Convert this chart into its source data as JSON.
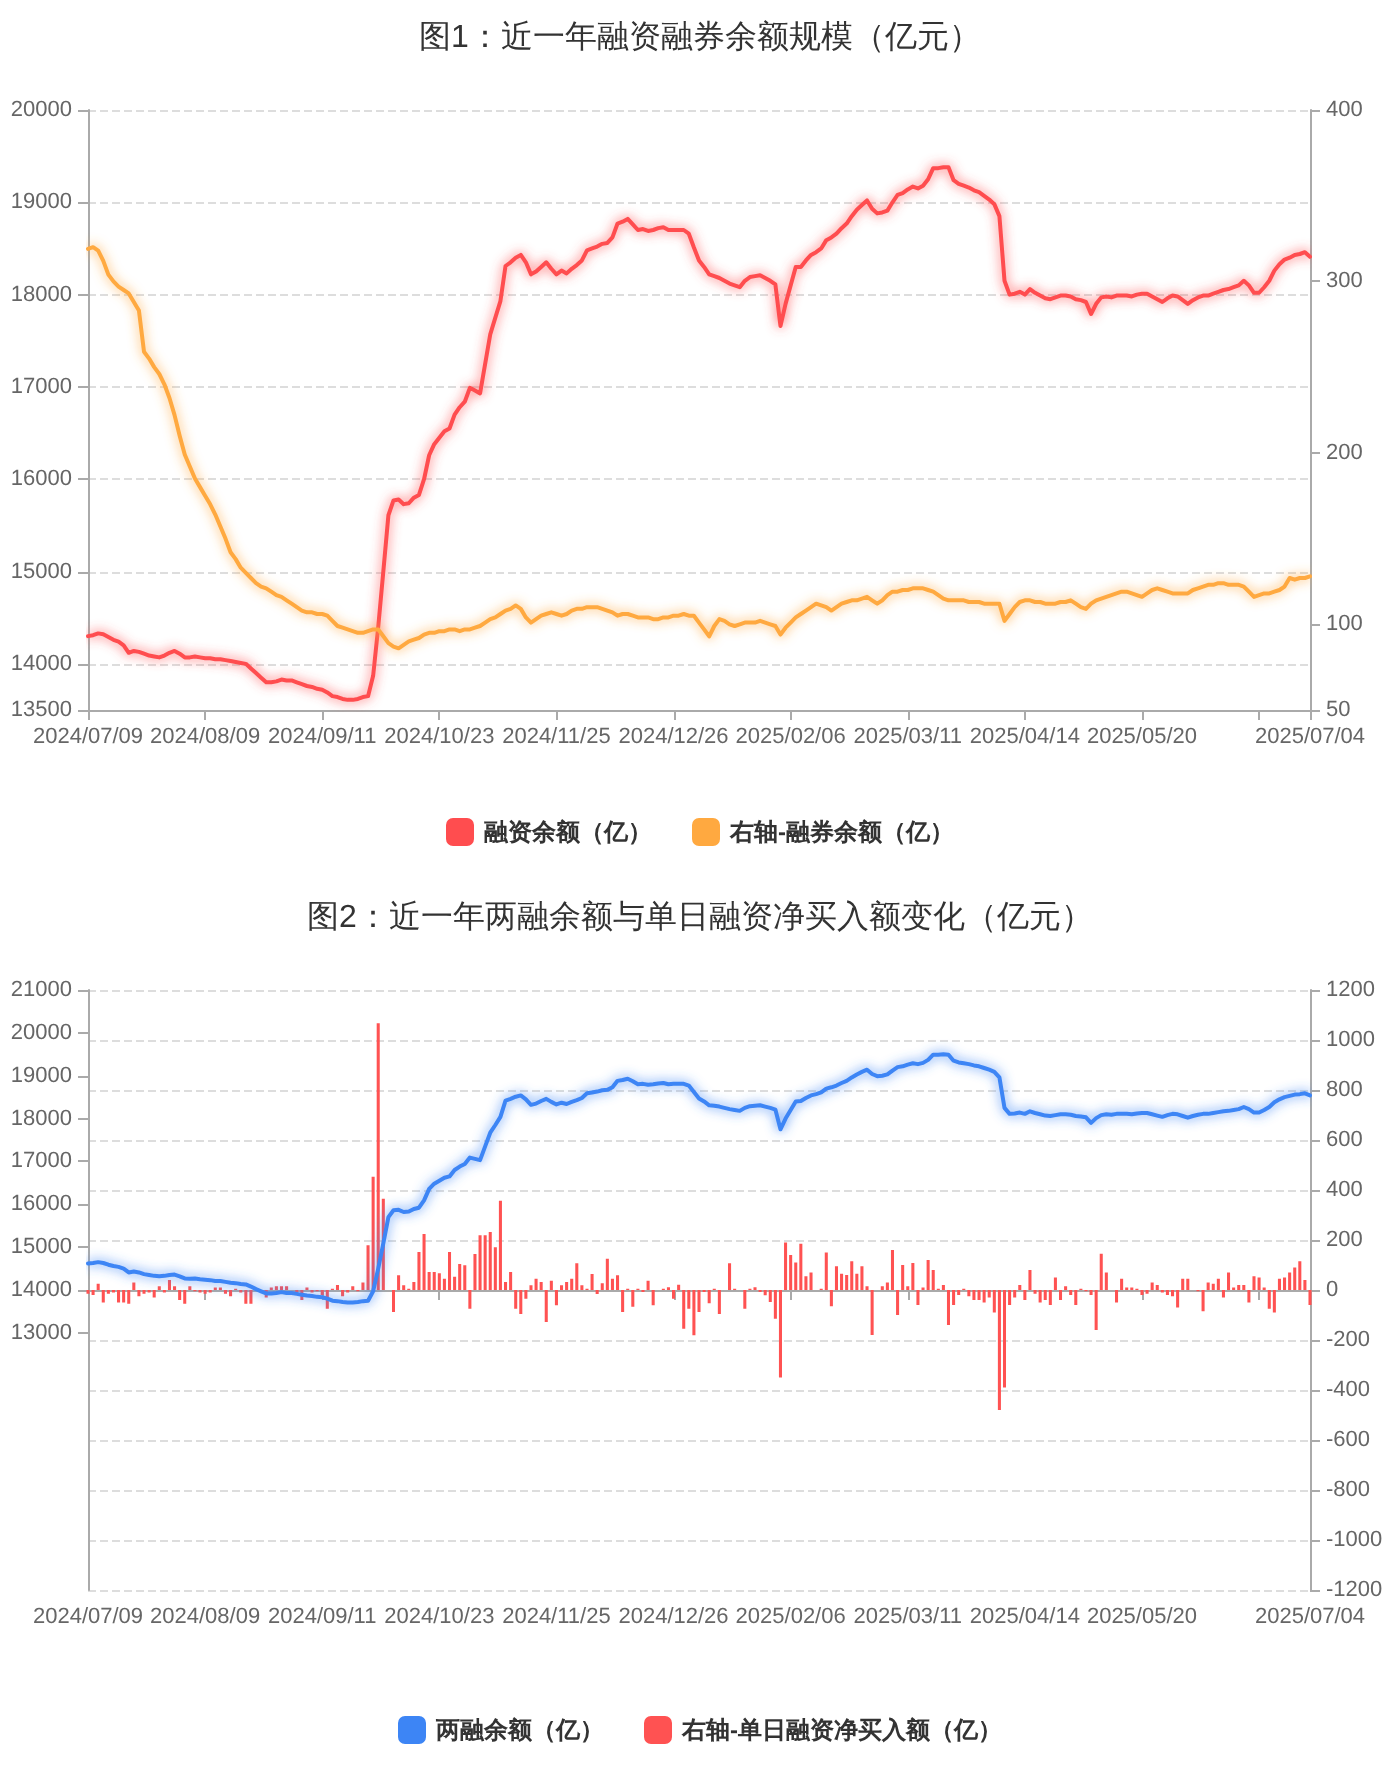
{
  "chart_data": [
    {
      "type": "line",
      "title": "图1：近一年融资融券余额规模（亿元）",
      "categories": [
        "2024/07/09",
        null,
        null,
        null,
        null,
        null,
        null,
        null,
        null,
        null,
        null,
        null,
        null,
        null,
        null,
        null,
        null,
        null,
        null,
        null,
        null,
        null,
        null,
        "2024/08/09",
        null,
        null,
        null,
        null,
        null,
        null,
        null,
        null,
        null,
        null,
        null,
        null,
        null,
        null,
        null,
        null,
        null,
        null,
        null,
        null,
        null,
        null,
        "2024/09/11",
        null,
        null,
        null,
        null,
        null,
        null,
        null,
        null,
        null,
        null,
        null,
        null,
        null,
        null,
        null,
        null,
        null,
        null,
        null,
        null,
        null,
        null,
        "2024/10/23",
        null,
        null,
        null,
        null,
        null,
        null,
        null,
        null,
        null,
        null,
        null,
        null,
        null,
        null,
        null,
        null,
        null,
        null,
        null,
        null,
        null,
        null,
        "2024/11/25",
        null,
        null,
        null,
        null,
        null,
        null,
        null,
        null,
        null,
        null,
        null,
        null,
        null,
        null,
        null,
        null,
        null,
        null,
        null,
        null,
        null,
        null,
        "2024/12/26",
        null,
        null,
        null,
        null,
        null,
        null,
        null,
        null,
        null,
        null,
        null,
        null,
        null,
        null,
        null,
        null,
        null,
        null,
        null,
        null,
        null,
        null,
        "2025/02/06",
        null,
        null,
        null,
        null,
        null,
        null,
        null,
        null,
        null,
        null,
        null,
        null,
        null,
        null,
        null,
        null,
        null,
        null,
        null,
        null,
        null,
        null,
        "2025/03/11",
        null,
        null,
        null,
        null,
        null,
        null,
        null,
        null,
        null,
        null,
        null,
        null,
        null,
        null,
        null,
        null,
        null,
        null,
        null,
        null,
        null,
        null,
        "2025/04/14",
        null,
        null,
        null,
        null,
        null,
        null,
        null,
        null,
        null,
        null,
        null,
        null,
        null,
        null,
        null,
        null,
        null,
        null,
        null,
        null,
        null,
        null,
        "2025/05/20",
        null,
        null,
        null,
        null,
        null,
        null,
        null,
        null,
        null,
        null,
        null,
        null,
        null,
        null,
        null,
        null,
        null,
        null,
        null,
        null,
        null,
        null,
        null,
        null,
        null,
        null,
        null,
        null,
        null,
        null,
        null,
        null,
        "2025/07/04"
      ],
      "series": [
        {
          "name": "融资余额（亿）",
          "color": "#ff4d4f",
          "values": [
            14300,
            14310,
            14330,
            14320,
            14290,
            14260,
            14240,
            14200,
            14120,
            14140,
            14130,
            14110,
            14090,
            14080,
            14070,
            14090,
            14120,
            14140,
            14110,
            14070,
            14070,
            14080,
            14070,
            14060,
            14060,
            14050,
            14050,
            14040,
            14030,
            14020,
            14010,
            14000,
            13950,
            13900,
            13850,
            13800,
            13800,
            13810,
            13830,
            13820,
            13820,
            13800,
            13780,
            13760,
            13750,
            13730,
            13720,
            13690,
            13650,
            13640,
            13620,
            13610,
            13610,
            13620,
            13640,
            13650,
            13870,
            14400,
            15000,
            15610,
            15770,
            15780,
            15730,
            15740,
            15800,
            15830,
            16000,
            16260,
            16380,
            16450,
            16520,
            16550,
            16700,
            16780,
            16840,
            16990,
            16960,
            16930,
            17250,
            17570,
            17750,
            17930,
            18310,
            18350,
            18400,
            18430,
            18350,
            18220,
            18250,
            18300,
            18350,
            18280,
            18220,
            18260,
            18230,
            18280,
            18320,
            18370,
            18480,
            18500,
            18520,
            18550,
            18560,
            18620,
            18770,
            18790,
            18820,
            18760,
            18700,
            18710,
            18690,
            18700,
            18720,
            18730,
            18700,
            18700,
            18700,
            18700,
            18660,
            18510,
            18370,
            18300,
            18220,
            18200,
            18180,
            18150,
            18120,
            18100,
            18080,
            18150,
            18190,
            18200,
            18210,
            18180,
            18150,
            18110,
            17660,
            17900,
            18100,
            18300,
            18300,
            18370,
            18430,
            18460,
            18500,
            18590,
            18620,
            18660,
            18720,
            18770,
            18850,
            18920,
            18970,
            19020,
            18930,
            18880,
            18890,
            18910,
            19000,
            19080,
            19100,
            19140,
            19170,
            19150,
            19180,
            19250,
            19370,
            19370,
            19380,
            19380,
            19240,
            19200,
            19180,
            19160,
            19130,
            19110,
            19070,
            19030,
            18980,
            18850,
            18150,
            18000,
            18010,
            18030,
            18000,
            18060,
            18020,
            17990,
            17960,
            17950,
            17970,
            17990,
            17990,
            17980,
            17950,
            17940,
            17920,
            17790,
            17900,
            17970,
            17980,
            17970,
            17990,
            17990,
            17990,
            17980,
            18000,
            18010,
            18010,
            17980,
            17950,
            17920,
            17960,
            17990,
            17980,
            17940,
            17900,
            17940,
            17970,
            17990,
            17990,
            18010,
            18030,
            18050,
            18060,
            18080,
            18100,
            18150,
            18100,
            18020,
            18020,
            18080,
            18150,
            18260,
            18330,
            18380,
            18400,
            18430,
            18440,
            18460,
            18410
          ]
        },
        {
          "name": "右轴-融券余额（亿）",
          "color": "#ffa940",
          "axis": "y2",
          "values": [
            319,
            320,
            318,
            312,
            304,
            300,
            297,
            295,
            293,
            288,
            283,
            259,
            255,
            250,
            246,
            240,
            232,
            222,
            210,
            199,
            192,
            185,
            180,
            175,
            170,
            164,
            157,
            150,
            142,
            138,
            133,
            130,
            127,
            124,
            122,
            121,
            119,
            117,
            116,
            114,
            112,
            110,
            108,
            107,
            107,
            106,
            106,
            105,
            102,
            99,
            98,
            97,
            96,
            95,
            95,
            96,
            97,
            97,
            93,
            89,
            87,
            86,
            88,
            90,
            91,
            92,
            94,
            95,
            95,
            96,
            96,
            97,
            97,
            96,
            97,
            97,
            98,
            99,
            101,
            103,
            104,
            106,
            108,
            109,
            111,
            109,
            104,
            101,
            103,
            105,
            106,
            107,
            106,
            105,
            106,
            108,
            109,
            109,
            110,
            110,
            110,
            109,
            108,
            107,
            105,
            106,
            106,
            105,
            104,
            104,
            104,
            103,
            103,
            104,
            104,
            105,
            105,
            106,
            105,
            105,
            101,
            97,
            93,
            99,
            103,
            102,
            100,
            99,
            100,
            101,
            101,
            101,
            102,
            101,
            100,
            99,
            94,
            98,
            101,
            104,
            106,
            108,
            110,
            112,
            111,
            110,
            108,
            110,
            112,
            113,
            114,
            114,
            115,
            116,
            114,
            112,
            114,
            117,
            119,
            119,
            120,
            120,
            121,
            121,
            121,
            120,
            119,
            117,
            115,
            114,
            114,
            114,
            114,
            113,
            113,
            113,
            112,
            112,
            112,
            112,
            102,
            106,
            110,
            113,
            114,
            114,
            113,
            113,
            112,
            112,
            112,
            113,
            113,
            114,
            112,
            110,
            109,
            112,
            114,
            115,
            116,
            117,
            118,
            119,
            119,
            118,
            117,
            116,
            118,
            120,
            121,
            120,
            119,
            118,
            118,
            118,
            118,
            120,
            121,
            122,
            123,
            123,
            124,
            124,
            123,
            123,
            123,
            122,
            119,
            116,
            117,
            118,
            118,
            119,
            120,
            122,
            127,
            126,
            127,
            127,
            128
          ]
        }
      ],
      "ylim": [
        13500,
        20000
      ],
      "yticks": [
        13500,
        14000,
        15000,
        16000,
        17000,
        18000,
        19000,
        20000
      ],
      "y2lim": [
        50,
        400
      ],
      "y2ticks": [
        50,
        100,
        200,
        300,
        400
      ],
      "grid": "y",
      "legend": "bottom",
      "marker": "none"
    },
    {
      "type": "line",
      "title": "图2：近一年两融余额与单日融资净买入额变化（亿元）",
      "categories": [
        "2024/07/09",
        null,
        null,
        null,
        null,
        null,
        null,
        null,
        null,
        null,
        null,
        null,
        null,
        null,
        null,
        null,
        null,
        null,
        null,
        null,
        null,
        null,
        null,
        "2024/08/09",
        null,
        null,
        null,
        null,
        null,
        null,
        null,
        null,
        null,
        null,
        null,
        null,
        null,
        null,
        null,
        null,
        null,
        null,
        null,
        null,
        null,
        null,
        "2024/09/11",
        null,
        null,
        null,
        null,
        null,
        null,
        null,
        null,
        null,
        null,
        null,
        null,
        null,
        null,
        null,
        null,
        null,
        null,
        null,
        null,
        null,
        null,
        "2024/10/23",
        null,
        null,
        null,
        null,
        null,
        null,
        null,
        null,
        null,
        null,
        null,
        null,
        null,
        null,
        null,
        null,
        null,
        null,
        null,
        null,
        null,
        null,
        "2024/11/25",
        null,
        null,
        null,
        null,
        null,
        null,
        null,
        null,
        null,
        null,
        null,
        null,
        null,
        null,
        null,
        null,
        null,
        null,
        null,
        null,
        null,
        null,
        "2024/12/26",
        null,
        null,
        null,
        null,
        null,
        null,
        null,
        null,
        null,
        null,
        null,
        null,
        null,
        null,
        null,
        null,
        null,
        null,
        null,
        null,
        null,
        null,
        "2025/02/06",
        null,
        null,
        null,
        null,
        null,
        null,
        null,
        null,
        null,
        null,
        null,
        null,
        null,
        null,
        null,
        null,
        null,
        null,
        null,
        null,
        null,
        null,
        "2025/03/11",
        null,
        null,
        null,
        null,
        null,
        null,
        null,
        null,
        null,
        null,
        null,
        null,
        null,
        null,
        null,
        null,
        null,
        null,
        null,
        null,
        null,
        null,
        "2025/04/14",
        null,
        null,
        null,
        null,
        null,
        null,
        null,
        null,
        null,
        null,
        null,
        null,
        null,
        null,
        null,
        null,
        null,
        null,
        null,
        null,
        null,
        null,
        "2025/05/20",
        null,
        null,
        null,
        null,
        null,
        null,
        null,
        null,
        null,
        null,
        null,
        null,
        null,
        null,
        null,
        null,
        null,
        null,
        null,
        null,
        null,
        null,
        null,
        null,
        null,
        null,
        null,
        null,
        null,
        null,
        null,
        null,
        "2025/07/04"
      ],
      "series": [
        {
          "name": "两融余额（亿）",
          "color": "#3d85f5",
          "values": [
            14620,
            14630,
            14650,
            14630,
            14590,
            14560,
            14540,
            14500,
            14410,
            14430,
            14410,
            14370,
            14350,
            14330,
            14320,
            14330,
            14350,
            14360,
            14320,
            14270,
            14260,
            14270,
            14250,
            14240,
            14230,
            14210,
            14210,
            14190,
            14170,
            14160,
            14140,
            14130,
            14080,
            14020,
            13970,
            13920,
            13920,
            13930,
            13950,
            13930,
            13930,
            13910,
            13890,
            13870,
            13860,
            13840,
            13830,
            13800,
            13750,
            13740,
            13720,
            13710,
            13710,
            13720,
            13740,
            13750,
            13970,
            14500,
            15090,
            15700,
            15860,
            15870,
            15820,
            15830,
            15890,
            15920,
            16090,
            16360,
            16480,
            16550,
            16620,
            16650,
            16800,
            16880,
            16940,
            17090,
            17060,
            17030,
            17350,
            17670,
            17850,
            18040,
            18420,
            18460,
            18510,
            18540,
            18450,
            18320,
            18350,
            18410,
            18460,
            18390,
            18330,
            18370,
            18340,
            18390,
            18430,
            18480,
            18590,
            18610,
            18630,
            18660,
            18670,
            18730,
            18880,
            18900,
            18930,
            18870,
            18800,
            18810,
            18790,
            18800,
            18820,
            18830,
            18800,
            18810,
            18810,
            18810,
            18770,
            18620,
            18470,
            18400,
            18310,
            18300,
            18280,
            18250,
            18220,
            18200,
            18180,
            18250,
            18290,
            18300,
            18310,
            18280,
            18250,
            18210,
            17750,
            18000,
            18200,
            18400,
            18410,
            18480,
            18540,
            18570,
            18610,
            18700,
            18730,
            18770,
            18830,
            18880,
            18960,
            19030,
            19090,
            19140,
            19040,
            18990,
            19000,
            19030,
            19120,
            19200,
            19220,
            19260,
            19290,
            19270,
            19300,
            19370,
            19490,
            19490,
            19500,
            19490,
            19350,
            19310,
            19290,
            19270,
            19240,
            19220,
            19180,
            19140,
            19090,
            18960,
            18250,
            18110,
            18120,
            18140,
            18110,
            18170,
            18130,
            18100,
            18070,
            18060,
            18080,
            18100,
            18100,
            18090,
            18060,
            18050,
            18030,
            17900,
            18010,
            18080,
            18100,
            18090,
            18110,
            18110,
            18110,
            18100,
            18120,
            18130,
            18130,
            18100,
            18070,
            18040,
            18080,
            18110,
            18100,
            18060,
            18020,
            18060,
            18090,
            18110,
            18110,
            18130,
            18150,
            18170,
            18180,
            18200,
            18220,
            18270,
            18220,
            18140,
            18140,
            18200,
            18270,
            18380,
            18450,
            18500,
            18530,
            18560,
            18570,
            18590,
            18540
          ]
        },
        {
          "name": "右轴-单日融资净买入额（亿）",
          "color": "#ff5252",
          "type": "bar",
          "axis": "y2",
          "values": [
            -15,
            -20,
            25,
            -50,
            -15,
            -10,
            -50,
            -50,
            -55,
            30,
            -25,
            -15,
            -10,
            -30,
            15,
            -10,
            40,
            15,
            -40,
            -55,
            15,
            -5,
            -10,
            -15,
            -10,
            10,
            10,
            -15,
            -25,
            5,
            -10,
            -55,
            -55,
            5,
            null,
            -30,
            10,
            15,
            15,
            15,
            null,
            -10,
            -40,
            10,
            -10,
            -5,
            -20,
            -75,
            5,
            20,
            -25,
            -10,
            15,
            -5,
            30,
            179,
            453,
            1067,
            365,
            null,
            -88,
            59,
            19,
            5,
            32,
            152,
            224,
            72,
            72,
            67,
            45,
            152,
            53,
            104,
            99,
            -75,
            144,
            219,
            219,
            232,
            171,
            357,
            32,
            72,
            -75,
            -96,
            -35,
            19,
            45,
            32,
            -128,
            37,
            -61,
            19,
            32,
            45,
            107,
            19,
            5,
            64,
            -16,
            27,
            125,
            45,
            59,
            -88,
            5,
            -67,
            5,
            -8,
            37,
            -61,
            0,
            5,
            11,
            -35,
            21,
            -155,
            -75,
            -181,
            -88,
            -8,
            -53,
            5,
            -96,
            0,
            107,
            5,
            null,
            -75,
            5,
            11,
            -8,
            -21,
            -48,
            -115,
            -350,
            190,
            140,
            110,
            185,
            55,
            70,
            0,
            5,
            150,
            -65,
            95,
            65,
            60,
            115,
            65,
            95,
            15,
            -180,
            0,
            15,
            30,
            160,
            -100,
            100,
            15,
            108,
            -60,
            10,
            120,
            80,
            5,
            20,
            -140,
            -60,
            -20,
            5,
            -25,
            -40,
            -40,
            -50,
            -30,
            -90,
            -480,
            -390,
            -60,
            -30,
            20,
            -40,
            80,
            -15,
            -50,
            -40,
            -60,
            50,
            -40,
            15,
            -20,
            -60,
            5,
            -5,
            -20,
            -160,
            145,
            70,
            0,
            -50,
            45,
            10,
            10,
            5,
            -20,
            -15,
            30,
            20,
            -10,
            -20,
            -25,
            -70,
            45,
            45,
            0,
            -5,
            -85,
            30,
            25,
            45,
            -30,
            70,
            10,
            20,
            20,
            -50,
            55,
            50,
            10,
            -75,
            -90,
            45,
            50,
            70,
            90,
            115,
            40,
            -60
          ]
        }
      ],
      "ylim": [
        7000,
        21000
      ],
      "yticks": [
        13000,
        14000,
        15000,
        16000,
        17000,
        18000,
        19000,
        20000,
        21000
      ],
      "y2lim": [
        -1200,
        1200
      ],
      "y2ticks": [
        -1200,
        -1000,
        -800,
        -600,
        -400,
        -200,
        0,
        200,
        400,
        600,
        800,
        1000,
        1200
      ],
      "grid": "y",
      "legend": "bottom",
      "marker": "none"
    }
  ]
}
